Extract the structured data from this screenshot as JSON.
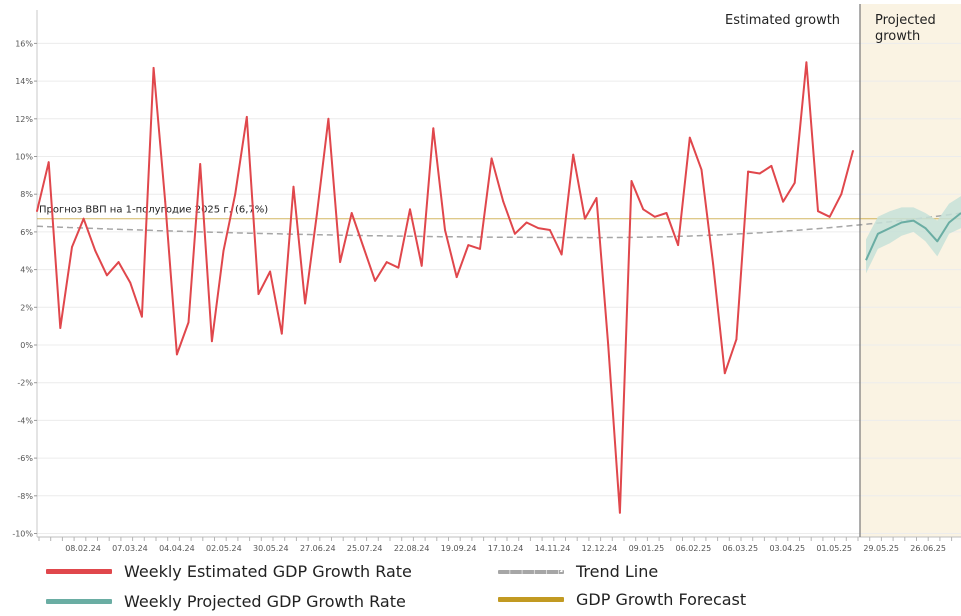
{
  "chart_data": {
    "type": "line",
    "title": "",
    "xlabel": "",
    "ylabel": "",
    "ylim": [
      -10,
      17
    ],
    "y_ticks": [
      -10,
      -8,
      -6,
      -4,
      -2,
      0,
      2,
      4,
      6,
      8,
      10,
      12,
      14,
      16
    ],
    "y_tick_format": "%",
    "x_tick_labels": [
      "08.02.24",
      "07.03.24",
      "04.04.24",
      "02.05.24",
      "30.05.24",
      "27.06.24",
      "25.07.24",
      "22.08.24",
      "19.09.24",
      "17.10.24",
      "14.11.24",
      "12.12.24",
      "09.01.25",
      "06.02.25",
      "06.03.25",
      "03.04.25",
      "01.05.25",
      "29.05.25",
      "26.06.25"
    ],
    "regions": [
      {
        "label": "Estimated growth"
      },
      {
        "label": "Projected growth",
        "fill": "#faf3e3"
      }
    ],
    "forecast_annotation": "Прогноз ВВП на 1-полугодие 2025 г. (6,7%)",
    "forecast_value": 6.7,
    "trend": {
      "start": 6.3,
      "min": 5.7,
      "end": 7.0
    },
    "series": [
      {
        "name": "Weekly Estimated GDP Growth Rate",
        "color": "#e0474c",
        "values": [
          7.1,
          9.7,
          0.9,
          5.2,
          6.7,
          5.0,
          3.7,
          4.4,
          3.3,
          1.5,
          14.7,
          7.6,
          -0.5,
          1.2,
          9.6,
          0.2,
          5.0,
          8.0,
          12.1,
          2.7,
          3.9,
          0.6,
          8.4,
          2.2,
          6.9,
          12.0,
          4.4,
          7.0,
          5.2,
          3.4,
          4.4,
          4.1,
          7.2,
          4.2,
          11.5,
          6.1,
          3.6,
          5.3,
          5.1,
          9.9,
          7.6,
          5.9,
          6.5,
          6.2,
          6.1,
          4.8,
          10.1,
          6.7,
          7.8,
          0.0,
          -8.9,
          8.7,
          7.2,
          6.8,
          7.0,
          5.3,
          11.0,
          9.3,
          4.3,
          -1.5,
          0.3,
          9.2,
          9.1,
          9.5,
          7.6,
          8.6,
          15.0,
          7.1,
          6.8,
          8.0,
          10.3
        ]
      },
      {
        "name": "Weekly Projected GDP Growth Rate",
        "color": "#6aada3",
        "values": [
          4.5,
          5.9,
          6.2,
          6.5,
          6.6,
          6.2,
          5.5,
          6.5,
          7.0
        ],
        "band": {
          "upper": [
            5.6,
            6.8,
            7.1,
            7.3,
            7.3,
            7.0,
            6.6,
            7.5,
            7.9
          ],
          "lower": [
            3.8,
            5.1,
            5.4,
            5.8,
            6.0,
            5.5,
            4.7,
            5.9,
            6.2
          ],
          "color": "#c6e1d8"
        }
      },
      {
        "name": "Trend Line",
        "color": "#a6a6a6",
        "style": "dashed"
      },
      {
        "name": "GDP Growth Forecast",
        "color": "#c29a22"
      }
    ]
  },
  "legend": [
    {
      "label": "Weekly Estimated GDP Growth Rate",
      "color": "#e0474c",
      "style": "solid"
    },
    {
      "label": "Trend Line",
      "color": "#a6a6a6",
      "style": "dashed"
    },
    {
      "label": "Weekly Projected GDP Growth Rate",
      "color": "#6aada3",
      "style": "solid"
    },
    {
      "label": "GDP Growth Forecast",
      "color": "#c29a22",
      "style": "solid"
    }
  ]
}
